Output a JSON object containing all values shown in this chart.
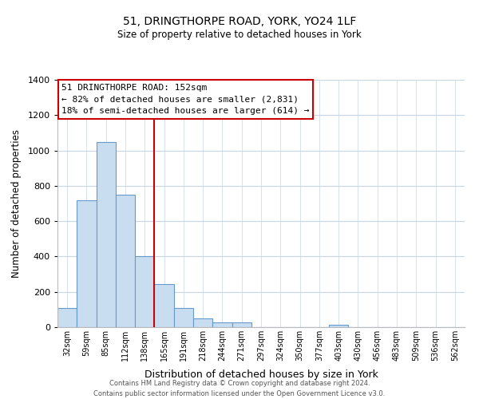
{
  "title_line1": "51, DRINGTHORPE ROAD, YORK, YO24 1LF",
  "title_line2": "Size of property relative to detached houses in York",
  "xlabel": "Distribution of detached houses by size in York",
  "ylabel": "Number of detached properties",
  "bar_labels": [
    "32sqm",
    "59sqm",
    "85sqm",
    "112sqm",
    "138sqm",
    "165sqm",
    "191sqm",
    "218sqm",
    "244sqm",
    "271sqm",
    "297sqm",
    "324sqm",
    "350sqm",
    "377sqm",
    "403sqm",
    "430sqm",
    "456sqm",
    "483sqm",
    "509sqm",
    "536sqm",
    "562sqm"
  ],
  "bar_values": [
    107,
    720,
    1050,
    748,
    400,
    245,
    110,
    48,
    28,
    28,
    0,
    0,
    0,
    0,
    15,
    0,
    0,
    0,
    0,
    0,
    0
  ],
  "bar_color": "#c8ddf0",
  "bar_edge_color": "#6699cc",
  "vline_x_index": 4.5,
  "vline_color": "#cc0000",
  "ylim": [
    0,
    1400
  ],
  "yticks": [
    0,
    200,
    400,
    600,
    800,
    1000,
    1200,
    1400
  ],
  "annotation_title": "51 DRINGTHORPE ROAD: 152sqm",
  "annotation_line1": "← 82% of detached houses are smaller (2,831)",
  "annotation_line2": "18% of semi-detached houses are larger (614) →",
  "annotation_box_color": "#ffffff",
  "annotation_box_edge": "#cc0000",
  "footer_line1": "Contains HM Land Registry data © Crown copyright and database right 2024.",
  "footer_line2": "Contains public sector information licensed under the Open Government Licence v3.0.",
  "bg_color": "#ffffff",
  "grid_color": "#c8d4e8"
}
